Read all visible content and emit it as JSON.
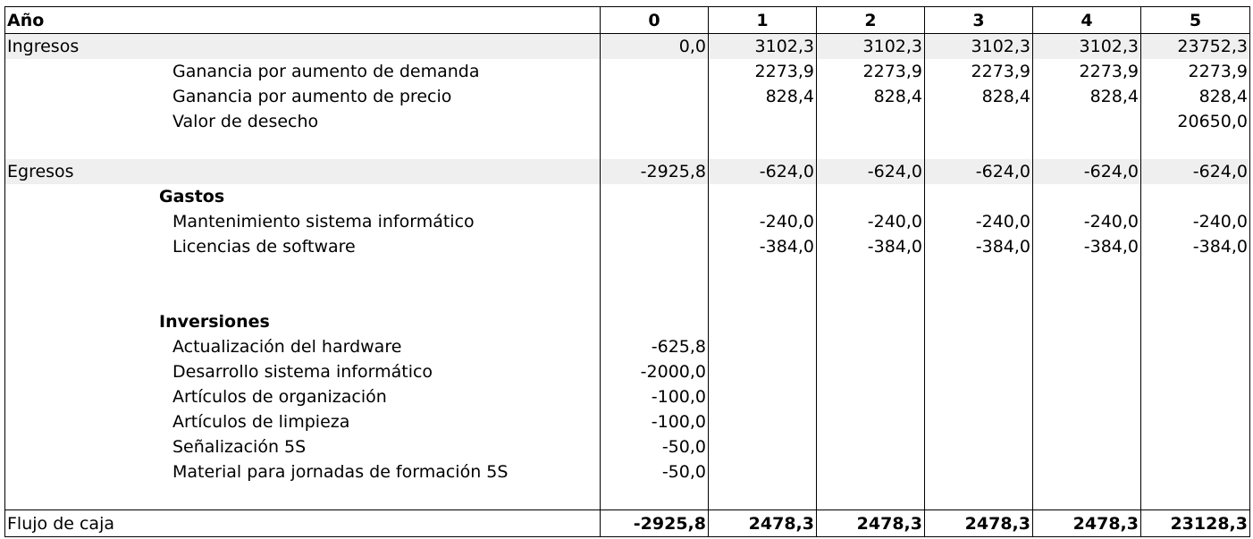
{
  "header": {
    "label": "Año",
    "years": [
      "0",
      "1",
      "2",
      "3",
      "4",
      "5"
    ]
  },
  "rows": [
    {
      "name": "ingresos-row",
      "label": "Ingresos",
      "style": "main shaded",
      "values": [
        "0,0",
        "3102,3",
        "3102,3",
        "3102,3",
        "3102,3",
        "23752,3"
      ]
    },
    {
      "name": "ganancia-demanda-row",
      "label": "Ganancia por aumento de demanda",
      "style": "sub",
      "values": [
        "",
        "2273,9",
        "2273,9",
        "2273,9",
        "2273,9",
        "2273,9"
      ]
    },
    {
      "name": "ganancia-precio-row",
      "label": "Ganancia por aumento de precio",
      "style": "sub",
      "values": [
        "",
        "828,4",
        "828,4",
        "828,4",
        "828,4",
        "828,4"
      ]
    },
    {
      "name": "valor-desecho-row",
      "label": "Valor de desecho",
      "style": "sub",
      "values": [
        "",
        "",
        "",
        "",
        "",
        "20650,0"
      ]
    },
    {
      "name": "spacer-row",
      "label": "",
      "style": "spacer",
      "values": [
        "",
        "",
        "",
        "",
        "",
        ""
      ]
    },
    {
      "name": "egresos-row",
      "label": "Egresos",
      "style": "main shaded",
      "values": [
        "-2925,8",
        "-624,0",
        "-624,0",
        "-624,0",
        "-624,0",
        "-624,0"
      ]
    },
    {
      "name": "gastos-row",
      "label": "Gastos",
      "style": "group",
      "values": [
        "",
        "",
        "",
        "",
        "",
        ""
      ]
    },
    {
      "name": "mantenimiento-row",
      "label": "Mantenimiento sistema informático",
      "style": "sub",
      "values": [
        "",
        "-240,0",
        "-240,0",
        "-240,0",
        "-240,0",
        "-240,0"
      ]
    },
    {
      "name": "licencias-row",
      "label": "Licencias de software",
      "style": "sub",
      "values": [
        "",
        "-384,0",
        "-384,0",
        "-384,0",
        "-384,0",
        "-384,0"
      ]
    },
    {
      "name": "spacer-row",
      "label": "",
      "style": "spacer",
      "values": [
        "",
        "",
        "",
        "",
        "",
        ""
      ]
    },
    {
      "name": "spacer-row",
      "label": "",
      "style": "spacer",
      "values": [
        "",
        "",
        "",
        "",
        "",
        ""
      ]
    },
    {
      "name": "inversiones-row",
      "label": "Inversiones",
      "style": "group",
      "values": [
        "",
        "",
        "",
        "",
        "",
        ""
      ]
    },
    {
      "name": "hardware-row",
      "label": "Actualización del hardware",
      "style": "sub",
      "values": [
        "-625,8",
        "",
        "",
        "",
        "",
        ""
      ]
    },
    {
      "name": "desarrollo-row",
      "label": "Desarrollo sistema informático",
      "style": "sub",
      "values": [
        "-2000,0",
        "",
        "",
        "",
        "",
        ""
      ]
    },
    {
      "name": "organizacion-row",
      "label": "Artículos de organización",
      "style": "sub",
      "values": [
        "-100,0",
        "",
        "",
        "",
        "",
        ""
      ]
    },
    {
      "name": "limpieza-row",
      "label": "Artículos de limpieza",
      "style": "sub",
      "values": [
        "-100,0",
        "",
        "",
        "",
        "",
        ""
      ]
    },
    {
      "name": "senalizacion-row",
      "label": "Señalización 5S",
      "style": "sub",
      "values": [
        "-50,0",
        "",
        "",
        "",
        "",
        ""
      ]
    },
    {
      "name": "material-formacion-row",
      "label": "Material para jornadas de formación 5S",
      "style": "sub",
      "values": [
        "-50,0",
        "",
        "",
        "",
        "",
        ""
      ]
    },
    {
      "name": "spacer-row",
      "label": "",
      "style": "spacer",
      "values": [
        "",
        "",
        "",
        "",
        "",
        ""
      ]
    }
  ],
  "total": {
    "label": "Flujo de caja",
    "values": [
      "-2925,8",
      "2478,3",
      "2478,3",
      "2478,3",
      "2478,3",
      "23128,3"
    ]
  }
}
